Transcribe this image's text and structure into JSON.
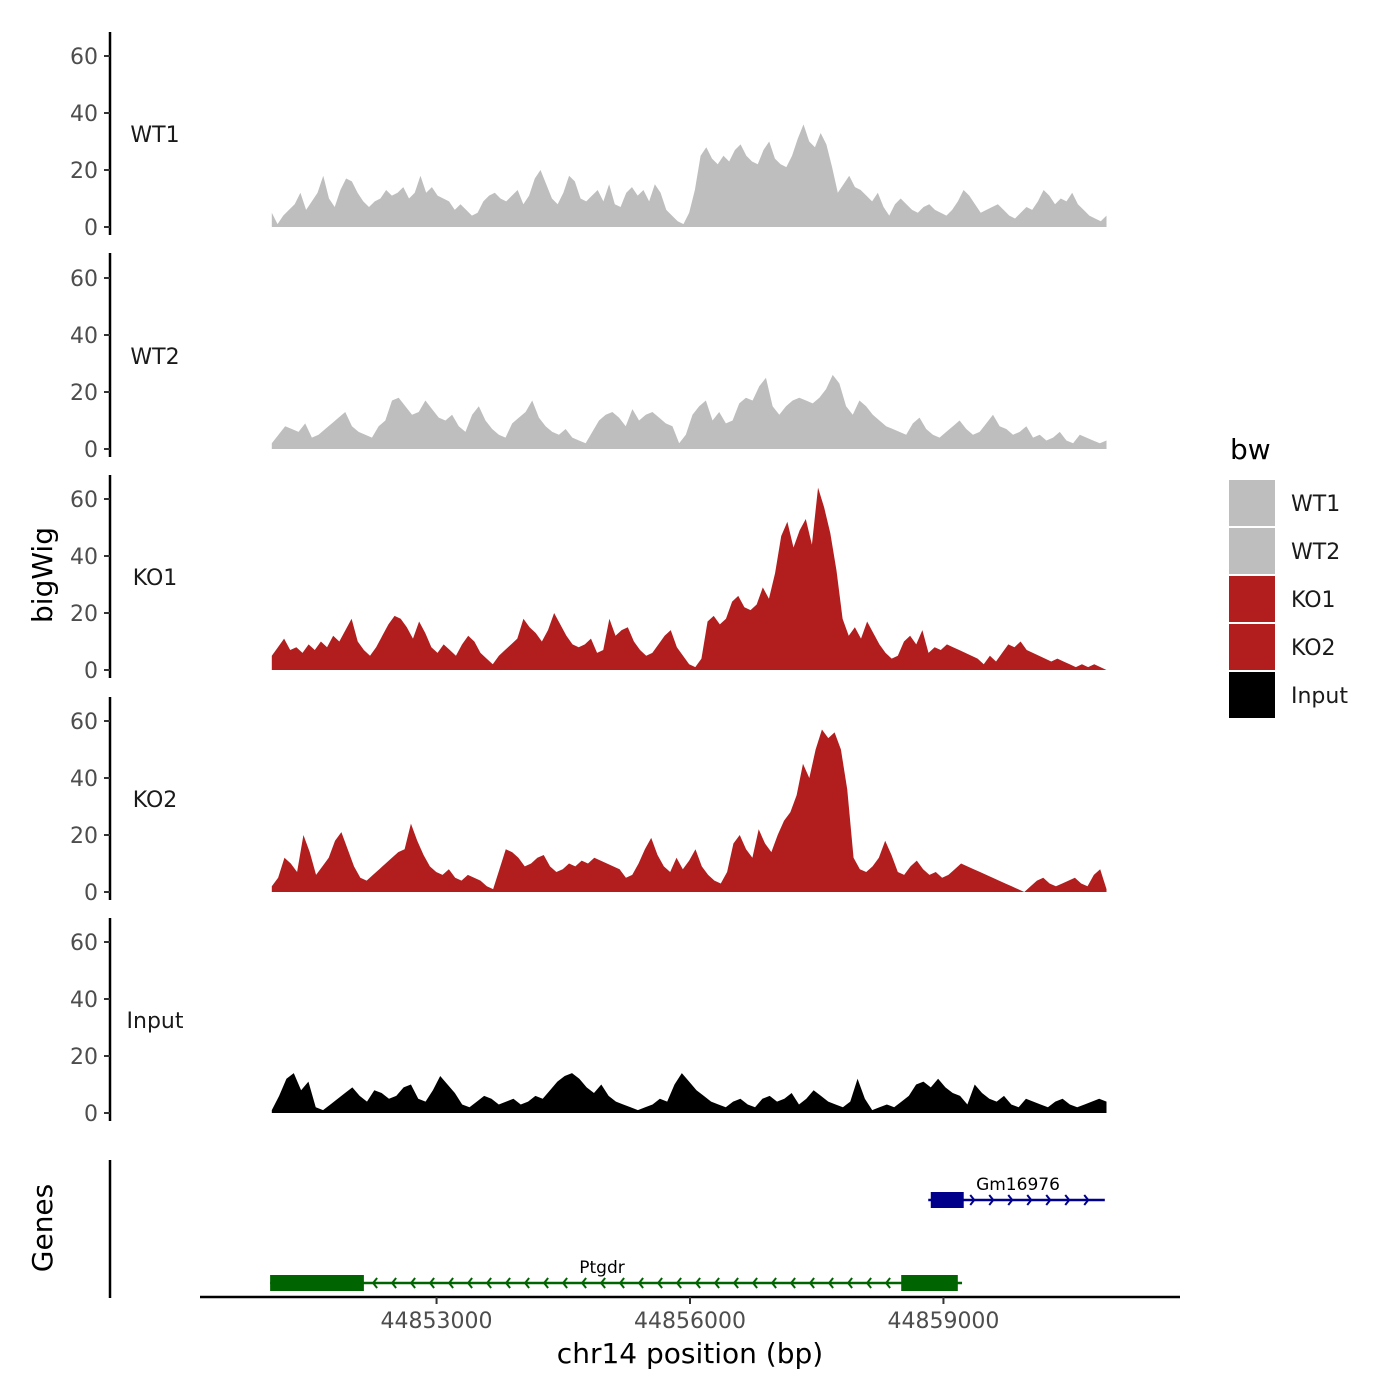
{
  "chart_data": {
    "type": "area",
    "ylabel": "bigWig",
    "xlabel": "chr14 position (bp)",
    "ylim": [
      0,
      68
    ],
    "yticks": [
      0,
      20,
      40,
      60
    ],
    "xlim": [
      44850200,
      44861800
    ],
    "x_range_data": [
      44851050,
      44860930
    ],
    "xticks": [
      44853000,
      44856000,
      44859000
    ],
    "xtick_labels": [
      "44853000",
      "44856000",
      "44859000"
    ],
    "tracks": [
      {
        "name": "WT1",
        "color": "#bebebe",
        "values": [
          5,
          1,
          4,
          6,
          8,
          12,
          6,
          9,
          12,
          18,
          10,
          7,
          13,
          17,
          16,
          12,
          9,
          7,
          9,
          10,
          13,
          11,
          12,
          14,
          10,
          12,
          18,
          12,
          14,
          11,
          10,
          9,
          6,
          8,
          6,
          4,
          5,
          9,
          11,
          12,
          10,
          9,
          11,
          13,
          8,
          11,
          17,
          20,
          15,
          10,
          8,
          12,
          18,
          16,
          10,
          9,
          11,
          13,
          9,
          15,
          8,
          7,
          12,
          14,
          11,
          13,
          9,
          15,
          12,
          6,
          4,
          2,
          1,
          5,
          13,
          25,
          28,
          24,
          22,
          25,
          23,
          27,
          29,
          25,
          23,
          22,
          27,
          30,
          24,
          22,
          21,
          25,
          31,
          36,
          30,
          28,
          33,
          29,
          21,
          12,
          15,
          18,
          14,
          13,
          11,
          9,
          12,
          7,
          4,
          8,
          10,
          8,
          6,
          5,
          7,
          8,
          6,
          5,
          4,
          6,
          9,
          13,
          11,
          8,
          5,
          6,
          7,
          8,
          6,
          4,
          3,
          5,
          7,
          6,
          9,
          13,
          11,
          8,
          10,
          9,
          12,
          8,
          6,
          4,
          3,
          2,
          4
        ],
        "peak_note": "max ~36"
      },
      {
        "name": "WT2",
        "color": "#bebebe",
        "values": [
          2,
          5,
          8,
          7,
          6,
          9,
          4,
          5,
          7,
          9,
          11,
          13,
          8,
          6,
          5,
          4,
          8,
          10,
          17,
          18,
          15,
          12,
          13,
          17,
          14,
          11,
          10,
          12,
          8,
          6,
          12,
          15,
          10,
          7,
          5,
          4,
          9,
          11,
          13,
          17,
          11,
          8,
          6,
          5,
          7,
          4,
          3,
          2,
          6,
          10,
          12,
          13,
          11,
          8,
          14,
          10,
          12,
          13,
          11,
          9,
          8,
          2,
          5,
          12,
          15,
          17,
          10,
          13,
          9,
          10,
          16,
          18,
          17,
          22,
          25,
          15,
          12,
          15,
          17,
          18,
          17,
          16,
          18,
          21,
          26,
          23,
          15,
          12,
          17,
          15,
          12,
          10,
          8,
          7,
          6,
          5,
          9,
          11,
          7,
          5,
          4,
          6,
          8,
          10,
          7,
          5,
          6,
          9,
          12,
          8,
          7,
          5,
          6,
          8,
          4,
          5,
          3,
          4,
          6,
          3,
          2,
          5,
          4,
          3,
          2,
          3
        ],
        "peak_note": "max ~26"
      },
      {
        "name": "KO1",
        "color": "#b21e1e",
        "values": [
          5,
          8,
          11,
          7,
          8,
          6,
          9,
          7,
          10,
          8,
          12,
          10,
          14,
          18,
          10,
          7,
          5,
          8,
          12,
          16,
          19,
          18,
          15,
          11,
          17,
          13,
          8,
          6,
          9,
          7,
          5,
          9,
          12,
          10,
          6,
          4,
          2,
          5,
          7,
          9,
          11,
          18,
          15,
          13,
          10,
          14,
          20,
          16,
          12,
          9,
          8,
          9,
          11,
          6,
          7,
          18,
          12,
          14,
          15,
          10,
          7,
          5,
          6,
          9,
          12,
          14,
          8,
          5,
          2,
          1,
          4,
          17,
          19,
          16,
          18,
          24,
          26,
          22,
          21,
          23,
          29,
          25,
          34,
          47,
          52,
          43,
          49,
          53,
          44,
          64,
          57,
          48,
          35,
          18,
          12,
          15,
          11,
          17,
          13,
          9,
          6,
          4,
          5,
          10,
          12,
          9,
          14,
          6,
          8,
          7,
          9,
          8,
          7,
          6,
          5,
          4,
          2,
          5,
          3,
          6,
          9,
          8,
          10,
          7,
          6,
          5,
          4,
          3,
          4,
          3,
          2,
          1,
          2,
          1,
          2,
          1,
          0
        ],
        "peak_note": "max ~64"
      },
      {
        "name": "KO2",
        "color": "#b21e1e",
        "values": [
          2,
          5,
          12,
          10,
          7,
          20,
          14,
          6,
          9,
          12,
          18,
          21,
          15,
          9,
          5,
          4,
          6,
          8,
          10,
          12,
          14,
          15,
          24,
          18,
          13,
          9,
          7,
          6,
          8,
          5,
          4,
          6,
          5,
          4,
          2,
          1,
          8,
          15,
          14,
          12,
          9,
          10,
          12,
          13,
          9,
          7,
          8,
          10,
          9,
          11,
          10,
          12,
          11,
          10,
          9,
          8,
          5,
          6,
          10,
          15,
          19,
          13,
          9,
          7,
          12,
          8,
          11,
          15,
          9,
          6,
          4,
          3,
          7,
          17,
          20,
          15,
          12,
          22,
          17,
          14,
          20,
          25,
          28,
          34,
          45,
          40,
          50,
          57,
          54,
          56,
          50,
          36,
          12,
          8,
          7,
          9,
          12,
          18,
          13,
          7,
          6,
          9,
          11,
          8,
          6,
          7,
          5,
          6,
          8,
          10,
          9,
          8,
          7,
          6,
          5,
          4,
          3,
          2,
          1,
          0,
          2,
          4,
          5,
          3,
          2,
          3,
          4,
          5,
          3,
          2,
          6,
          8,
          1
        ],
        "peak_note": "max ~58"
      },
      {
        "name": "Input",
        "color": "#000000",
        "values": [
          1,
          6,
          12,
          14,
          8,
          11,
          2,
          1,
          3,
          5,
          7,
          9,
          6,
          4,
          8,
          7,
          5,
          6,
          9,
          10,
          5,
          4,
          8,
          13,
          10,
          7,
          3,
          2,
          4,
          6,
          5,
          3,
          4,
          5,
          3,
          4,
          6,
          5,
          8,
          11,
          13,
          14,
          12,
          9,
          7,
          10,
          6,
          4,
          3,
          2,
          1,
          2,
          3,
          5,
          4,
          10,
          14,
          11,
          8,
          6,
          4,
          3,
          2,
          4,
          5,
          3,
          2,
          5,
          6,
          4,
          5,
          7,
          3,
          5,
          8,
          6,
          4,
          3,
          2,
          4,
          12,
          5,
          1,
          2,
          3,
          2,
          4,
          6,
          10,
          11,
          9,
          12,
          9,
          7,
          6,
          3,
          10,
          7,
          5,
          4,
          6,
          3,
          2,
          5,
          4,
          3,
          2,
          4,
          5,
          3,
          2,
          3,
          4,
          5,
          4
        ],
        "peak_note": "max ~14"
      }
    ],
    "legend": {
      "title": "bw",
      "position": "right",
      "items": [
        {
          "label": "WT1",
          "color": "#bebebe"
        },
        {
          "label": "WT2",
          "color": "#bebebe"
        },
        {
          "label": "KO1",
          "color": "#b21e1e"
        },
        {
          "label": "KO2",
          "color": "#b21e1e"
        },
        {
          "label": "Input",
          "color": "#000000"
        }
      ]
    },
    "genes_panel_label": "Genes",
    "genes": [
      {
        "name": "Gm16976",
        "strand": "+",
        "color": "#00008b",
        "start": 44858820,
        "end": 44860910,
        "exons": [
          [
            44858850,
            44859240
          ]
        ],
        "arrows": "forward"
      },
      {
        "name": "Ptgdr",
        "strand": "-",
        "color": "#006400",
        "start": 44851030,
        "end": 44859220,
        "exons": [
          [
            44851030,
            44852140
          ],
          [
            44858500,
            44859170
          ]
        ],
        "arrows": "reverse"
      }
    ]
  }
}
